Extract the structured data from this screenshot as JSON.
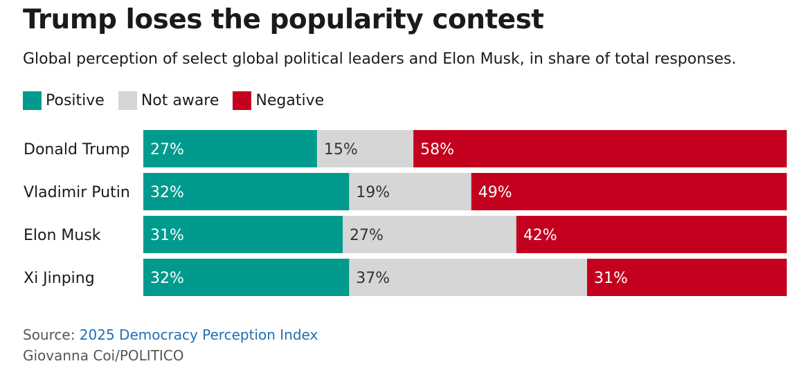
{
  "header": {
    "title": "Trump loses the popularity contest",
    "subtitle": "Global perception of select global political leaders and Elon Musk, in share of total responses."
  },
  "legend": [
    {
      "label": "Positive",
      "color": "#009a8e"
    },
    {
      "label": "Not aware",
      "color": "#d6d6d6"
    },
    {
      "label": "Negative",
      "color": "#c4001f"
    }
  ],
  "chart_data": {
    "type": "bar",
    "orientation": "horizontal",
    "stacked": true,
    "normalized": true,
    "categories": [
      "Donald Trump",
      "Vladimir Putin",
      "Elon Musk",
      "Xi Jinping"
    ],
    "series": [
      {
        "name": "Positive",
        "color": "#009a8e",
        "label_color": "#ffffff",
        "values": [
          27,
          32,
          31,
          32
        ]
      },
      {
        "name": "Not aware",
        "color": "#d6d6d6",
        "label_color": "#333333",
        "values": [
          15,
          19,
          27,
          37
        ]
      },
      {
        "name": "Negative",
        "color": "#c4001f",
        "label_color": "#ffffff",
        "values": [
          58,
          49,
          42,
          31
        ]
      }
    ],
    "value_suffix": "%",
    "xlim": [
      0,
      100
    ],
    "grid": false,
    "legend_position": "top-left"
  },
  "footer": {
    "source_prefix": "Source: ",
    "source_link": "2025 Democracy Perception Index",
    "credit": "Giovanna Coi/POLITICO"
  }
}
